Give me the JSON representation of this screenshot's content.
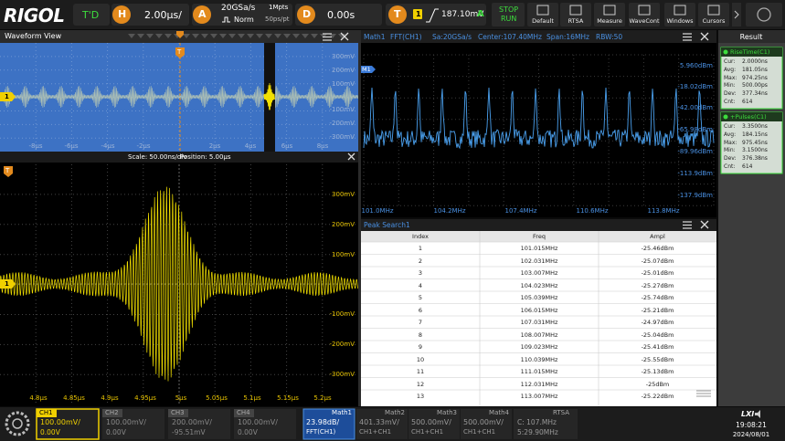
{
  "toolbar": {
    "logo": "RIGOL",
    "trigger_status": "T'D",
    "horizontal": {
      "key": "H",
      "value": "2.00µs/"
    },
    "acquire": {
      "key": "A",
      "sample_rate": "20GSa/s",
      "memory": "1Mpts",
      "mode": "Norm",
      "resolution": "50ps/pt"
    },
    "delay": {
      "key": "D",
      "value": "0.00s"
    },
    "trigger": {
      "key": "T",
      "source": "1",
      "level": "187.10mV",
      "coupling": "A"
    },
    "run": [
      "STOP",
      "RUN"
    ],
    "buttons": [
      "Default",
      "RTSA",
      "Measure",
      "WaveCont",
      "Windows",
      "Cursors"
    ]
  },
  "waveform_view": {
    "title": "Waveform View",
    "channel_marker": "1",
    "trigger_marker": "T",
    "overview_yticks": [
      "300mV",
      "200mV",
      "100mV",
      "-100mV",
      "-200mV",
      "-300mV"
    ],
    "overview_xticks": [
      "-8µs",
      "-6µs",
      "-4µs",
      "-2µs",
      "2µs",
      "4µs",
      "6µs",
      "8µs"
    ],
    "scale": "Scale: 50.00ns/div",
    "position": "Position: 5.00µs",
    "zoom_yticks": [
      "300mV",
      "200mV",
      "100mV",
      "-100mV",
      "-200mV",
      "-300mV"
    ],
    "zoom_xticks": [
      "4.8µs",
      "4.85µs",
      "4.9µs",
      "4.95µs",
      "5µs",
      "5.05µs",
      "5.1µs",
      "5.15µs",
      "5.2µs"
    ]
  },
  "fft": {
    "title": "Math1",
    "source": "FFT(CH1)",
    "sample_rate": "Sa:20GSa/s",
    "center": "Center:107.40MHz",
    "span": "Span:16MHz",
    "rbw": "RBW:50",
    "marker": "M1",
    "yticks": [
      "5.960dBm",
      "-18.02dBm",
      "-42.00dBm",
      "-65.98dBm",
      "-89.96dBm",
      "-113.9dBm",
      "-137.9dBm"
    ],
    "xticks": [
      "101.0MHz",
      "104.2MHz",
      "107.4MHz",
      "110.6MHz",
      "113.8MHz"
    ]
  },
  "peak_search": {
    "title": "Peak Search1",
    "columns": [
      "Index",
      "Freq",
      "Ampl"
    ],
    "rows": [
      [
        "1",
        "101.015MHz",
        "-25.46dBm"
      ],
      [
        "2",
        "102.031MHz",
        "-25.07dBm"
      ],
      [
        "3",
        "103.007MHz",
        "-25.01dBm"
      ],
      [
        "4",
        "104.023MHz",
        "-25.27dBm"
      ],
      [
        "5",
        "105.039MHz",
        "-25.74dBm"
      ],
      [
        "6",
        "106.015MHz",
        "-25.21dBm"
      ],
      [
        "7",
        "107.031MHz",
        "-24.97dBm"
      ],
      [
        "8",
        "108.007MHz",
        "-25.04dBm"
      ],
      [
        "9",
        "109.023MHz",
        "-25.41dBm"
      ],
      [
        "10",
        "110.039MHz",
        "-25.55dBm"
      ],
      [
        "11",
        "111.015MHz",
        "-25.13dBm"
      ],
      [
        "12",
        "112.031MHz",
        "-25dBm"
      ],
      [
        "13",
        "113.007MHz",
        "-25.22dBm"
      ]
    ]
  },
  "result": {
    "title": "Result",
    "measurements": [
      {
        "name": "RiseTime(C1)",
        "rows": [
          [
            "Cur:",
            "2.0000ns"
          ],
          [
            "Avg:",
            "181.05ns"
          ],
          [
            "Max:",
            "974.25ns"
          ],
          [
            "Min:",
            "500.00ps"
          ],
          [
            "Dev:",
            "377.34ns"
          ],
          [
            "Cnt:",
            "614"
          ]
        ]
      },
      {
        "name": "+Pulses(C1)",
        "rows": [
          [
            "Cur:",
            "3.3500ns"
          ],
          [
            "Avg:",
            "184.15ns"
          ],
          [
            "Max:",
            "975.45ns"
          ],
          [
            "Min:",
            "3.1500ns"
          ],
          [
            "Dev:",
            "376.38ns"
          ],
          [
            "Cnt:",
            "614"
          ]
        ]
      }
    ]
  },
  "bottom_bar": {
    "channels": [
      {
        "name": "CH1",
        "scale": "100.00mV/",
        "offset": "0.00V"
      },
      {
        "name": "CH2",
        "scale": "100.00mV/",
        "offset": "0.00V"
      },
      {
        "name": "CH3",
        "scale": "200.00mV/",
        "offset": "-95.51mV"
      },
      {
        "name": "CH4",
        "scale": "100.00mV/",
        "offset": "0.00V"
      }
    ],
    "maths": [
      {
        "name": "Math1",
        "scale": "23.98dB/",
        "source": "FFT(CH1)"
      },
      {
        "name": "Math2",
        "scale": "401.33mV/",
        "source": "CH1+CH1"
      },
      {
        "name": "Math3",
        "scale": "500.00mV/",
        "source": "CH1+CH1"
      },
      {
        "name": "Math4",
        "scale": "500.00mV/",
        "source": "CH1+CH1"
      }
    ],
    "rtsa": {
      "name": "RTSA",
      "center": "C: 107.MHz",
      "span": "5:29.90MHz"
    },
    "lxi": "LXI",
    "time": "19:08:21",
    "date": "2024/08/01"
  }
}
